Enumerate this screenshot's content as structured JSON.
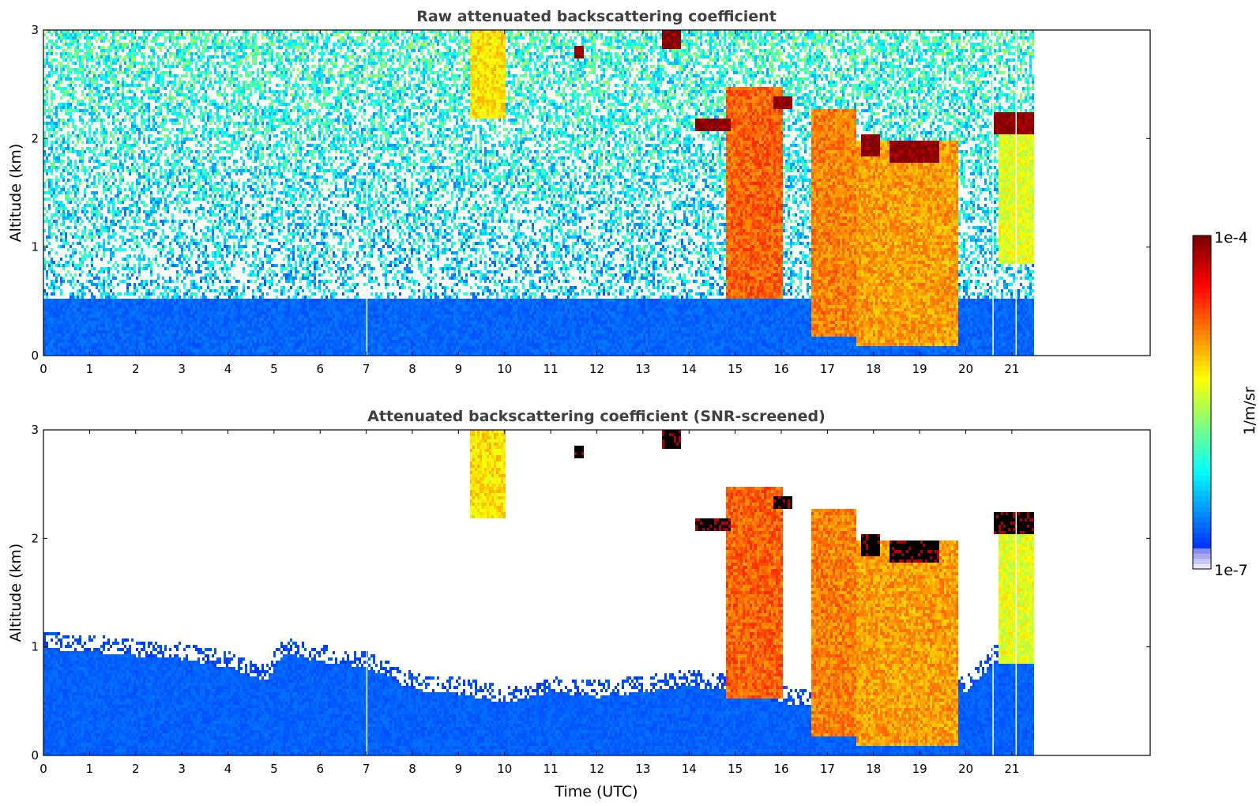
{
  "chart_data": [
    {
      "type": "heatmap",
      "title": "Raw attenuated backscattering coefficient",
      "xlabel": "",
      "ylabel": "Altitude (km)",
      "xlim": [
        0,
        24
      ],
      "ylim": [
        0,
        3
      ],
      "x_ticks": [
        0,
        1,
        2,
        3,
        4,
        5,
        6,
        7,
        8,
        9,
        10,
        11,
        12,
        13,
        14,
        15,
        16,
        17,
        18,
        19,
        20,
        21
      ],
      "y_ticks": [
        0,
        1,
        2,
        3
      ],
      "data_end_hour": 21.45,
      "colorscale": "jet",
      "noise_top_km": 0.55,
      "gaps_hours": [
        7.0,
        20.58,
        21.08
      ],
      "features": [
        {
          "kind": "aerosol_plume",
          "x0": 9.2,
          "x1": 10.0,
          "y0": 2.2,
          "y1": 3.0,
          "level": 0.65
        },
        {
          "kind": "rain_streak",
          "x0": 14.8,
          "x1": 16.0,
          "y0": 0.55,
          "y1": 2.5,
          "level": 0.78
        },
        {
          "kind": "rain_streak",
          "x0": 16.6,
          "x1": 17.6,
          "y0": 0.2,
          "y1": 2.3,
          "level": 0.75
        },
        {
          "kind": "rain_streak",
          "x0": 17.6,
          "x1": 19.8,
          "y0": 0.1,
          "y1": 2.0,
          "level": 0.72
        },
        {
          "kind": "rain_streak",
          "x0": 20.7,
          "x1": 21.45,
          "y0": 0.85,
          "y1": 2.1,
          "level": 0.6
        },
        {
          "kind": "cloud",
          "x0": 14.1,
          "x1": 14.9,
          "y0": 2.07,
          "y1": 2.2,
          "level": 1.0
        },
        {
          "kind": "cloud",
          "x0": 15.8,
          "x1": 16.2,
          "y0": 2.3,
          "y1": 2.4,
          "level": 1.0
        },
        {
          "kind": "cloud",
          "x0": 17.7,
          "x1": 18.1,
          "y0": 1.85,
          "y1": 2.05,
          "level": 1.0
        },
        {
          "kind": "cloud",
          "x0": 18.3,
          "x1": 19.4,
          "y0": 1.8,
          "y1": 2.0,
          "level": 1.0
        },
        {
          "kind": "cloud",
          "x0": 20.6,
          "x1": 21.45,
          "y0": 2.05,
          "y1": 2.25,
          "level": 1.0
        },
        {
          "kind": "cloud",
          "x0": 11.5,
          "x1": 11.7,
          "y0": 2.75,
          "y1": 2.88,
          "level": 1.0
        },
        {
          "kind": "cloud",
          "x0": 13.4,
          "x1": 13.8,
          "y0": 2.85,
          "y1": 3.0,
          "level": 1.0
        }
      ]
    },
    {
      "type": "heatmap",
      "title": "Attenuated backscattering coefficient (SNR-screened)",
      "xlabel": "Time (UTC)",
      "ylabel": "Altitude (km)",
      "xlim": [
        0,
        24
      ],
      "ylim": [
        0,
        3
      ],
      "x_ticks": [
        0,
        1,
        2,
        3,
        4,
        5,
        6,
        7,
        8,
        9,
        10,
        11,
        12,
        13,
        14,
        15,
        16,
        17,
        18,
        19,
        20,
        21
      ],
      "y_ticks": [
        0,
        1,
        2,
        3
      ],
      "data_end_hour": 21.45,
      "colorscale": "jet",
      "boundary_layer_top_km": [
        [
          0,
          1.0
        ],
        [
          1,
          0.97
        ],
        [
          2,
          0.93
        ],
        [
          3,
          0.9
        ],
        [
          4,
          0.82
        ],
        [
          4.8,
          0.7
        ],
        [
          5.2,
          0.95
        ],
        [
          6,
          0.88
        ],
        [
          7,
          0.82
        ],
        [
          8,
          0.62
        ],
        [
          9,
          0.58
        ],
        [
          10,
          0.5
        ],
        [
          11,
          0.6
        ],
        [
          12,
          0.55
        ],
        [
          13,
          0.6
        ],
        [
          14,
          0.65
        ],
        [
          15,
          0.6
        ],
        [
          16,
          0.5
        ],
        [
          17,
          0.45
        ],
        [
          18,
          0.5
        ],
        [
          19,
          0.55
        ],
        [
          20,
          0.6
        ],
        [
          21,
          1.05
        ],
        [
          21.45,
          1.05
        ]
      ],
      "gaps_hours": [
        7.0,
        20.58,
        21.08
      ]
    }
  ],
  "colorbar": {
    "max_label": "1e-4",
    "min_label": "1e-7",
    "unit_label": "1/m/sr",
    "scale": "log"
  }
}
